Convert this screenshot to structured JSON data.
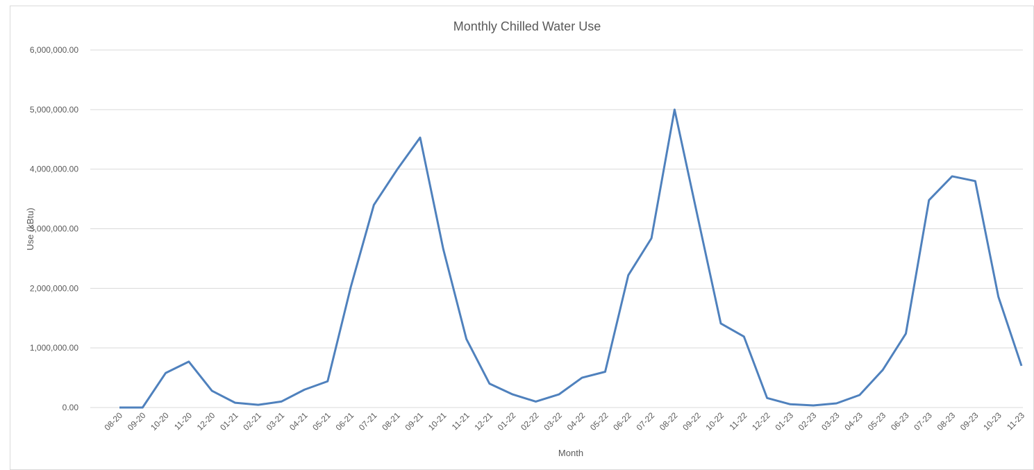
{
  "chart_data": {
    "type": "line",
    "title": "Monthly Chilled Water Use",
    "x_label": "Month",
    "y_label": "Use (kBtu)",
    "categories": [
      "08-20",
      "09-20",
      "10-20",
      "11-20",
      "12-20",
      "01-21",
      "02-21",
      "03-21",
      "04-21",
      "05-21",
      "06-21",
      "07-21",
      "08-21",
      "09-21",
      "10-21",
      "11-21",
      "12-21",
      "01-22",
      "02-22",
      "03-22",
      "04-22",
      "05-22",
      "06-22",
      "07-22",
      "08-22",
      "09-22",
      "10-22",
      "11-22",
      "12-22",
      "01-23",
      "02-23",
      "03-23",
      "04-23",
      "05-23",
      "06-23",
      "07-23",
      "08-23",
      "09-23",
      "10-23",
      "11-23"
    ],
    "series": [
      {
        "name": "Use (kBtu)",
        "color": "#4f81bd",
        "values": [
          0,
          0,
          580000,
          770000,
          280000,
          80000,
          45000,
          100000,
          300000,
          440000,
          2020000,
          3400000,
          3990000,
          4530000,
          2660000,
          1150000,
          400000,
          220000,
          100000,
          220000,
          500000,
          600000,
          2220000,
          2840000,
          5000000,
          3200000,
          1410000,
          1190000,
          160000,
          55000,
          35000,
          70000,
          210000,
          630000,
          1240000,
          3480000,
          3880000,
          3800000,
          1860000,
          700000
        ]
      }
    ],
    "ylim": [
      0,
      6000000
    ],
    "yticks": [
      {
        "value": 0,
        "label": "0.00"
      },
      {
        "value": 1000000,
        "label": "1,000,000.00"
      },
      {
        "value": 2000000,
        "label": "2,000,000.00"
      },
      {
        "value": 3000000,
        "label": "3,000,000.00"
      },
      {
        "value": 4000000,
        "label": "4,000,000.00"
      },
      {
        "value": 5000000,
        "label": "5,000,000.00"
      },
      {
        "value": 6000000,
        "label": "6,000,000.00"
      }
    ],
    "grid": true
  }
}
